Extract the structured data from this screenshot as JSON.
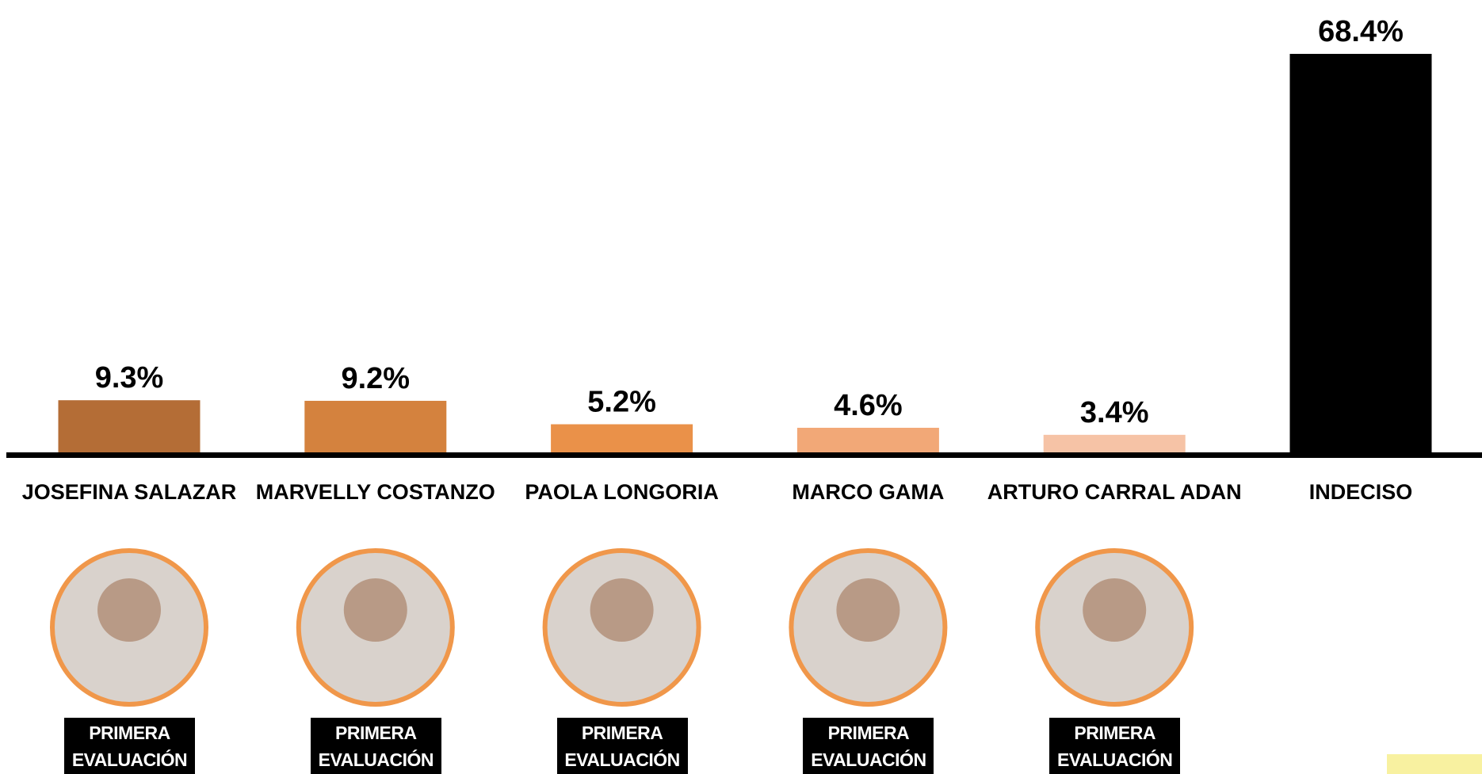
{
  "chart_data": {
    "type": "bar",
    "categories": [
      "JOSEFINA SALAZAR",
      "MARVELLY COSTANZO",
      "PAOLA LONGORIA",
      "MARCO GAMA",
      "ARTURO CARRAL ADAN",
      "INDECISO"
    ],
    "values": [
      9.3,
      9.2,
      5.2,
      4.6,
      3.4,
      68.4
    ],
    "value_labels": [
      "9.3%",
      "9.2%",
      "5.2%",
      "4.6%",
      "3.4%",
      "68.4%"
    ],
    "colors": [
      "#b46d36",
      "#d4823e",
      "#ea9149",
      "#f2a877",
      "#f6c3a6",
      "#000000"
    ],
    "annotations": [
      "PRIMERA EVALUACIÓN",
      "PRIMERA EVALUACIÓN",
      "PRIMERA EVALUACIÓN",
      "PRIMERA EVALUACIÓN",
      "PRIMERA EVALUACIÓN"
    ]
  }
}
